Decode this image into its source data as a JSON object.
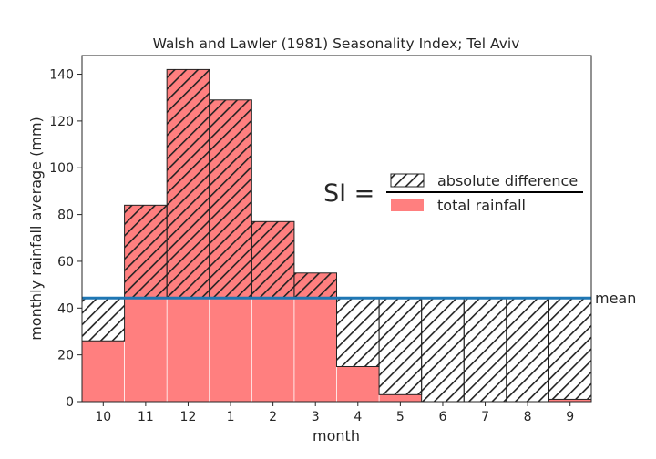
{
  "chart_data": {
    "type": "bar",
    "title": "Walsh and Lawler (1981) Seasonality Index; Tel Aviv",
    "xlabel": "month",
    "ylabel": "monthly rainfall average (mm)",
    "categories": [
      "10",
      "11",
      "12",
      "1",
      "2",
      "3",
      "4",
      "5",
      "6",
      "7",
      "8",
      "9"
    ],
    "ylim": [
      0,
      148
    ],
    "yticks": [
      0,
      20,
      40,
      60,
      80,
      100,
      120,
      140
    ],
    "series": [
      {
        "name": "total rainfall",
        "values": [
          26,
          84,
          142,
          129,
          77,
          55,
          15,
          3,
          0,
          0,
          0,
          1
        ]
      }
    ],
    "mean": 44.3,
    "mean_label": "mean",
    "annotation": {
      "lhs": "SI =",
      "numerator": "absolute difference",
      "denominator": "total rainfall"
    },
    "colors": {
      "rain": "#ff7f7f",
      "mean_line": "#1f77b4",
      "hatch": "#222222"
    }
  }
}
